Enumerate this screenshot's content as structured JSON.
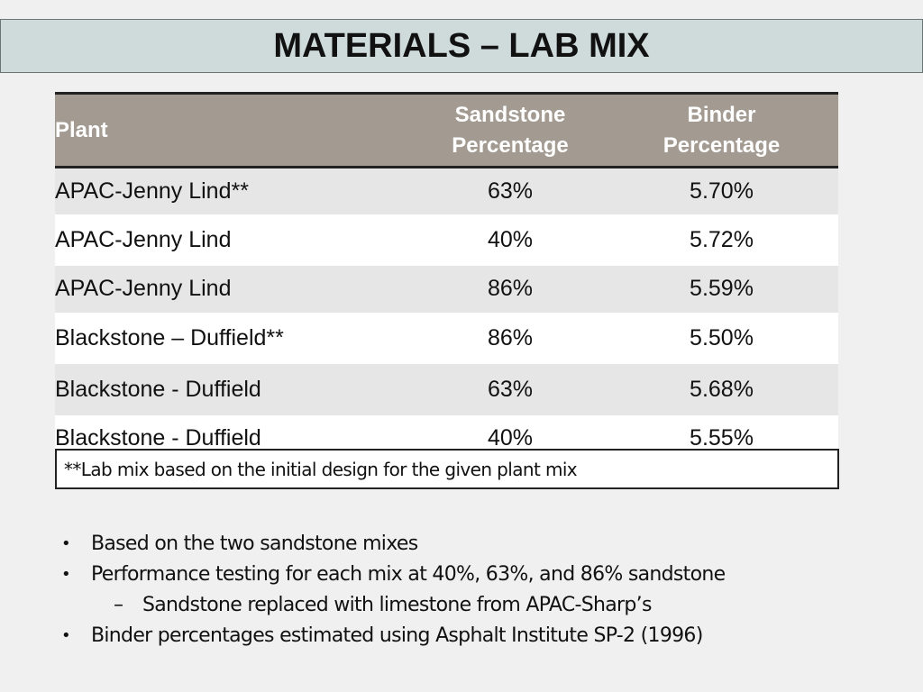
{
  "slide": {
    "title": "MATERIALS – LAB MIX"
  },
  "table": {
    "headers": {
      "plant": "Plant",
      "sandstone_line1": "Sandstone",
      "sandstone_line2": "Percentage",
      "binder_line1": "Binder",
      "binder_line2": "Percentage"
    },
    "rows": [
      {
        "plant": "APAC-Jenny Lind**",
        "sandstone": "63%",
        "binder": "5.70%"
      },
      {
        "plant": "APAC-Jenny Lind",
        "sandstone": "40%",
        "binder": "5.72%"
      },
      {
        "plant": "APAC-Jenny Lind",
        "sandstone": "86%",
        "binder": "5.59%"
      },
      {
        "plant": "Blackstone – Duffield**",
        "sandstone": "86%",
        "binder": "5.50%"
      },
      {
        "plant": "Blackstone - Duffield",
        "sandstone": "63%",
        "binder": "5.68%"
      },
      {
        "plant": "Blackstone - Duffield",
        "sandstone": "40%",
        "binder": "5.55%"
      }
    ],
    "footnote": "**Lab mix based on the initial design for the given plant mix"
  },
  "bullets": [
    {
      "marker": "•",
      "text": "Based on the two sandstone mixes"
    },
    {
      "marker": "•",
      "text": "Performance testing for each mix at 40%, 63%, and 86% sandstone"
    },
    {
      "marker": "–",
      "text": "Sandstone replaced with limestone from APAC-Sharp’s"
    },
    {
      "marker": "•",
      "text": "Binder percentages estimated using Asphalt Institute SP-2 (1996)"
    }
  ],
  "colors": {
    "title_bar": "#cfdadb",
    "header_row": "#a39b91",
    "shaded_row": "#e6e6e6",
    "background": "#f0f0f0"
  }
}
